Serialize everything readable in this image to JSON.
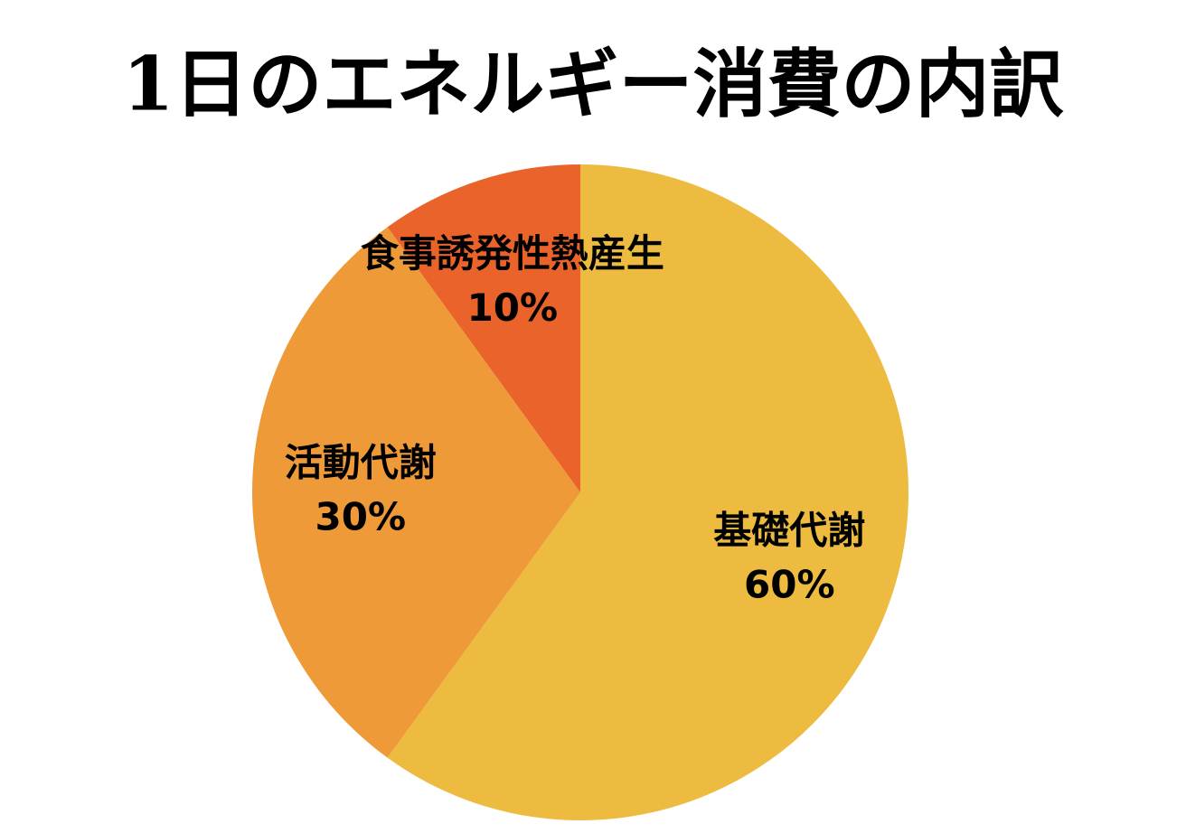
{
  "chart_data": {
    "type": "pie",
    "title": "1日のエネルギー消費の内訳",
    "categories": [
      "基礎代謝",
      "活動代謝",
      "食事誘発性熱産生"
    ],
    "values": [
      60,
      30,
      10
    ],
    "value_labels": [
      "60%",
      "30%",
      "10%"
    ],
    "colors": [
      "#edbb3f",
      "#ef9a38",
      "#ea632b"
    ]
  }
}
